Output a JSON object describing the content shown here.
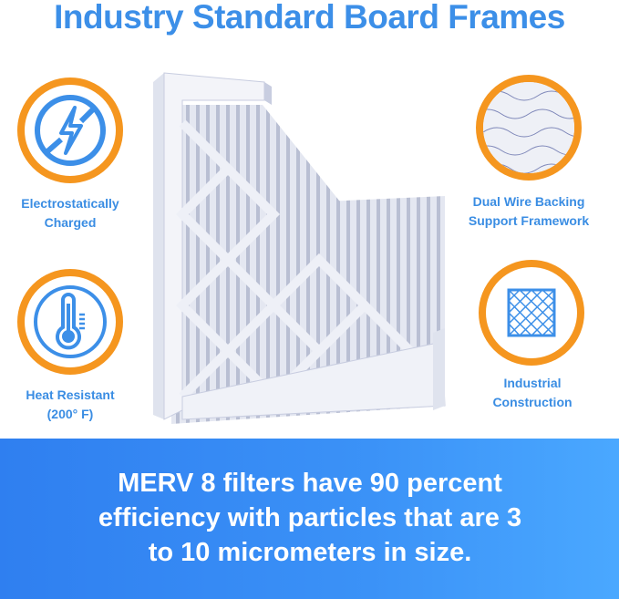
{
  "title": "Industry Standard Board Frames",
  "features": [
    {
      "label_line1": "Electrostatically",
      "label_line2": "Charged",
      "icon": "no-static-bolt-icon"
    },
    {
      "label_line1": "Heat Resistant",
      "label_line2": "(200° F)",
      "icon": "thermometer-icon"
    },
    {
      "label_line1": "Dual Wire Backing",
      "label_line2": "Support Framework",
      "icon": "wire-mesh-photo"
    },
    {
      "label_line1": "Industrial",
      "label_line2": "Construction",
      "icon": "grid-frame-icon"
    }
  ],
  "banner": {
    "line1": "MERV 8 filters have 90 percent",
    "line2": "efficiency with particles that are 3",
    "line3": "to 10 micrometers in size."
  },
  "colors": {
    "accent_blue": "#3c8fe8",
    "ring_orange": "#f5961f",
    "banner_blue": "#2f7ff0"
  }
}
